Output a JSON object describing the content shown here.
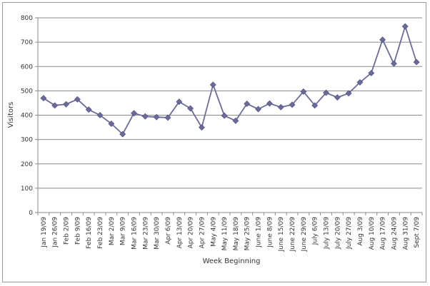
{
  "chart_data": {
    "type": "line",
    "title": "",
    "xlabel": "Week Beginning",
    "ylabel": "Visitors",
    "ylim": [
      0,
      800
    ],
    "yticks": [
      0,
      100,
      200,
      300,
      400,
      500,
      600,
      700,
      800
    ],
    "grid": true,
    "legend": "none",
    "categories": [
      "Jan 19/09",
      "Jan 26/09",
      "Feb 2/09",
      "Feb 9/09",
      "Feb 16/09",
      "Feb 23/09",
      "Mar 2/09",
      "Mar 9/09",
      "Mar 16/09",
      "Mar 23/09",
      "Mar 30/09",
      "Apr 6/09",
      "Apr 13/09",
      "Apr 20/09",
      "Apr 27/09",
      "May 4/09",
      "May 11/09",
      "May 18/09",
      "May 25/09",
      "June 1/09",
      "June 8/09",
      "June 15/09",
      "June 22/09",
      "June 29/09",
      "July 6/09",
      "July 13/09",
      "July 20/09",
      "July 27/09",
      "Aug 3/09",
      "Aug 10/09",
      "Aug 17/09",
      "Aug 24/09",
      "Aug 31/09",
      "Sept 7/09"
    ],
    "series": [
      {
        "values": [
          470,
          440,
          445,
          465,
          423,
          400,
          365,
          322,
          408,
          395,
          392,
          390,
          455,
          428,
          350,
          525,
          398,
          377,
          447,
          425,
          448,
          433,
          443,
          497,
          440,
          492,
          473,
          490,
          535,
          573,
          710,
          612,
          765,
          618
        ],
        "color": "#6b6b9b"
      }
    ]
  }
}
